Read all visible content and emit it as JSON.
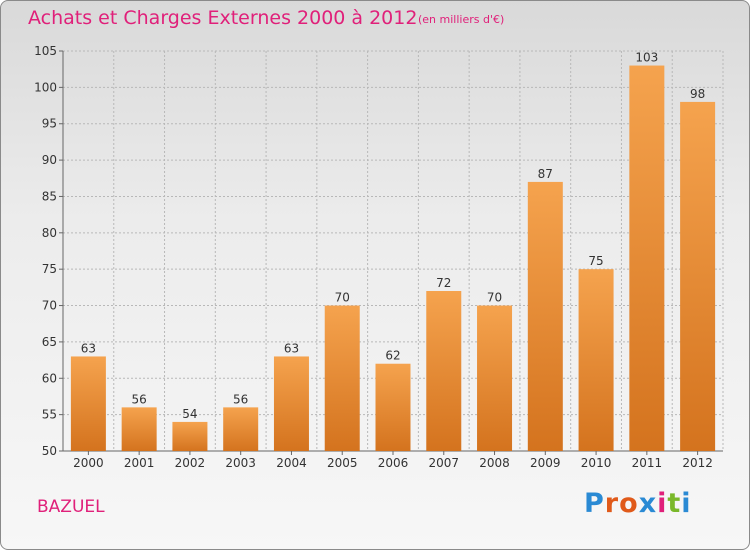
{
  "header": {
    "title": "Achats et Charges Externes 2000 à 2012",
    "subtitle": "(en milliers d'€)"
  },
  "footer": {
    "commune": "BAZUEL",
    "logo_text": "Proxiti"
  },
  "colors": {
    "title": "#e0207a",
    "bar_top": "#f5a34e",
    "bar_bottom": "#d4731e",
    "grid": "#b8b8b8"
  },
  "chart_data": {
    "type": "bar",
    "categories": [
      "2000",
      "2001",
      "2002",
      "2003",
      "2004",
      "2005",
      "2006",
      "2007",
      "2008",
      "2009",
      "2010",
      "2011",
      "2012"
    ],
    "values": [
      63,
      56,
      54,
      56,
      63,
      70,
      62,
      72,
      70,
      87,
      75,
      103,
      98
    ],
    "title": "Achats et Charges Externes 2000 à 2012",
    "subtitle": "(en milliers d'€)",
    "xlabel": "",
    "ylabel": "",
    "ylim": [
      50,
      105
    ],
    "yticks": [
      50,
      55,
      60,
      65,
      70,
      75,
      80,
      85,
      90,
      95,
      100,
      105
    ],
    "grid": true,
    "data_labels": true
  }
}
